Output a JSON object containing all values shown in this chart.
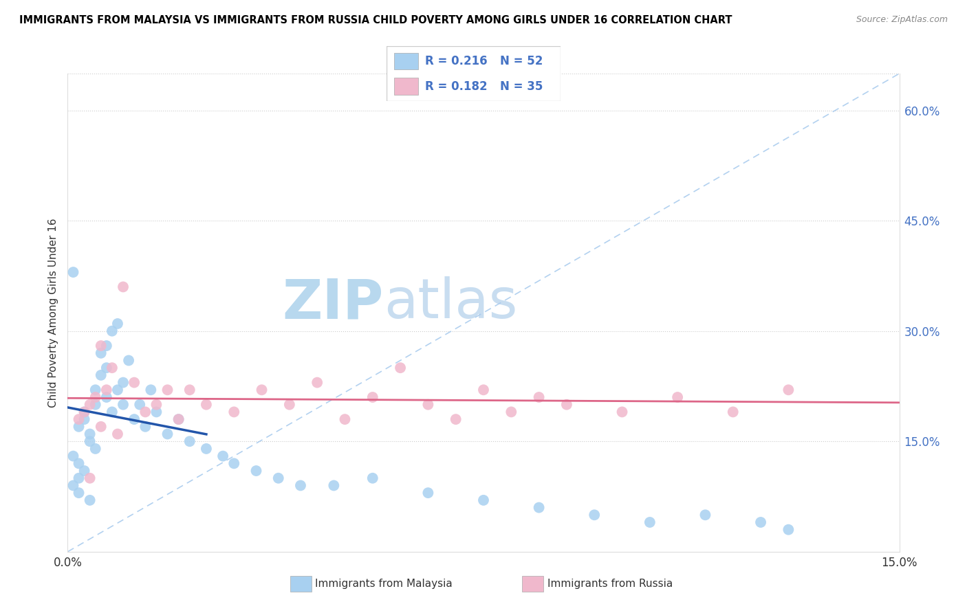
{
  "title": "IMMIGRANTS FROM MALAYSIA VS IMMIGRANTS FROM RUSSIA CHILD POVERTY AMONG GIRLS UNDER 16 CORRELATION CHART",
  "source": "Source: ZipAtlas.com",
  "ylabel_left": "Child Poverty Among Girls Under 16",
  "xlim": [
    0,
    0.15
  ],
  "ylim": [
    0,
    0.65
  ],
  "R_malaysia": 0.216,
  "N_malaysia": 52,
  "R_russia": 0.182,
  "N_russia": 35,
  "color_malaysia": "#a8d0f0",
  "color_russia": "#f0b8cc",
  "trendline_malaysia": "#2255aa",
  "trendline_russia": "#dd6688",
  "diag_color": "#aaccee",
  "watermark_zip_color": "#b8d8ee",
  "watermark_atlas_color": "#c8ddf0",
  "malaysia_x": [
    0.001,
    0.001,
    0.002,
    0.002,
    0.002,
    0.003,
    0.003,
    0.004,
    0.004,
    0.005,
    0.005,
    0.005,
    0.006,
    0.006,
    0.007,
    0.007,
    0.007,
    0.008,
    0.008,
    0.009,
    0.009,
    0.01,
    0.01,
    0.011,
    0.012,
    0.013,
    0.014,
    0.015,
    0.016,
    0.018,
    0.02,
    0.022,
    0.025,
    0.028,
    0.03,
    0.034,
    0.038,
    0.042,
    0.048,
    0.055,
    0.065,
    0.075,
    0.085,
    0.095,
    0.105,
    0.115,
    0.125,
    0.13,
    0.001,
    0.002,
    0.003,
    0.004
  ],
  "malaysia_y": [
    0.38,
    0.13,
    0.12,
    0.17,
    0.1,
    0.18,
    0.19,
    0.15,
    0.16,
    0.22,
    0.2,
    0.14,
    0.27,
    0.24,
    0.28,
    0.25,
    0.21,
    0.3,
    0.19,
    0.31,
    0.22,
    0.2,
    0.23,
    0.26,
    0.18,
    0.2,
    0.17,
    0.22,
    0.19,
    0.16,
    0.18,
    0.15,
    0.14,
    0.13,
    0.12,
    0.11,
    0.1,
    0.09,
    0.09,
    0.1,
    0.08,
    0.07,
    0.06,
    0.05,
    0.04,
    0.05,
    0.04,
    0.03,
    0.09,
    0.08,
    0.11,
    0.07
  ],
  "russia_x": [
    0.002,
    0.003,
    0.004,
    0.005,
    0.006,
    0.007,
    0.008,
    0.009,
    0.01,
    0.012,
    0.014,
    0.016,
    0.018,
    0.02,
    0.022,
    0.025,
    0.03,
    0.035,
    0.04,
    0.045,
    0.05,
    0.055,
    0.06,
    0.065,
    0.07,
    0.075,
    0.08,
    0.085,
    0.09,
    0.1,
    0.11,
    0.12,
    0.13,
    0.004,
    0.006
  ],
  "russia_y": [
    0.18,
    0.19,
    0.2,
    0.21,
    0.17,
    0.22,
    0.25,
    0.16,
    0.36,
    0.23,
    0.19,
    0.2,
    0.22,
    0.18,
    0.22,
    0.2,
    0.19,
    0.22,
    0.2,
    0.23,
    0.18,
    0.21,
    0.25,
    0.2,
    0.18,
    0.22,
    0.19,
    0.21,
    0.2,
    0.19,
    0.21,
    0.19,
    0.22,
    0.1,
    0.28
  ]
}
